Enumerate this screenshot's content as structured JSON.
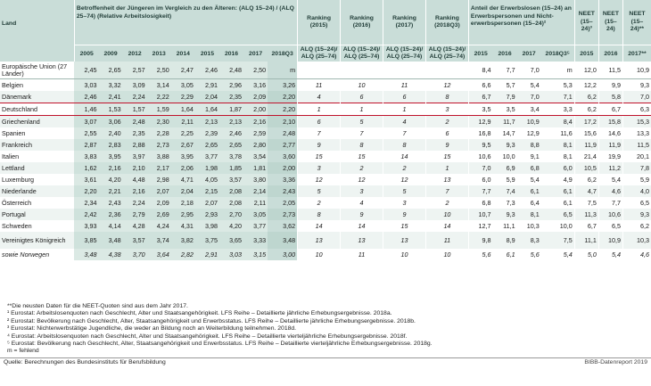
{
  "header": {
    "land": "Land",
    "group_rel": "Betroffenheit der Jüngeren im Vergleich zu den Älteren: (ALQ 15–24) / (ALQ 25–74) (Relative Arbeitslosigkeit)",
    "rank_2015": "Ranking (2015)",
    "rank_2016": "Ranking (2016)",
    "rank_2017": "Ranking (2017)",
    "rank_2018": "Ranking (2018Q3)",
    "group_share": "Anteil der Erwerbslosen (15–24) an Erwerbspersonen und Nicht-erwerbspersonen (15–24)²",
    "neet1": "NEET (15–24)³",
    "neet2": "NEET (15–24)",
    "neet3": "NEET (15–24)**",
    "years_rel": [
      "2005",
      "2009",
      "2012",
      "2013",
      "2014",
      "2015",
      "2016",
      "2017",
      "2018Q3"
    ],
    "rank_sub": "ALQ (15–24)/ ALQ (25–74)",
    "years_share": [
      "2015",
      "2016",
      "2017",
      "2018Q3⁵"
    ],
    "years_neet": [
      "2015",
      "2016",
      "2017**"
    ]
  },
  "rows": [
    {
      "land": "Europäische Union (27 Länder)",
      "rel": [
        "2,45",
        "2,65",
        "2,57",
        "2,50",
        "2,47",
        "2,46",
        "2,48",
        "2,50",
        "m"
      ],
      "rank": [
        "",
        "",
        "",
        ""
      ],
      "share": [
        "8,4",
        "7,7",
        "7,0",
        "m"
      ],
      "neet": [
        "12,0",
        "11,5",
        "10,9"
      ],
      "cls": "eu tall"
    },
    {
      "land": "Belgien",
      "rel": [
        "3,03",
        "3,32",
        "3,09",
        "3,14",
        "3,05",
        "2,91",
        "2,96",
        "3,16",
        "3,26"
      ],
      "rank": [
        "11",
        "10",
        "11",
        "12"
      ],
      "share": [
        "6,6",
        "5,7",
        "5,4",
        "5,3"
      ],
      "neet": [
        "12,2",
        "9,9",
        "9,3"
      ],
      "cls": ""
    },
    {
      "land": "Dänemark",
      "rel": [
        "2,46",
        "2,41",
        "2,24",
        "2,22",
        "2,29",
        "2,04",
        "2,35",
        "2,09",
        "2,20"
      ],
      "rank": [
        "4",
        "6",
        "6",
        "8"
      ],
      "share": [
        "6,7",
        "7,9",
        "7,0",
        "7,1"
      ],
      "neet": [
        "6,2",
        "5,8",
        "7,0"
      ],
      "cls": "alt"
    },
    {
      "land": "Deutschland",
      "rel": [
        "1,46",
        "1,53",
        "1,57",
        "1,59",
        "1,64",
        "1,64",
        "1,87",
        "2,00",
        "2,20"
      ],
      "rank": [
        "1",
        "1",
        "1",
        "3"
      ],
      "share": [
        "3,5",
        "3,5",
        "3,4",
        "3,3"
      ],
      "neet": [
        "6,2",
        "6,7",
        "6,3"
      ],
      "cls": "de"
    },
    {
      "land": "Griechenland",
      "rel": [
        "3,07",
        "3,06",
        "2,48",
        "2,30",
        "2,11",
        "2,13",
        "2,13",
        "2,16",
        "2,10"
      ],
      "rank": [
        "6",
        "5",
        "4",
        "2"
      ],
      "share": [
        "12,9",
        "11,7",
        "10,9",
        "8,4"
      ],
      "neet": [
        "17,2",
        "15,8",
        "15,3"
      ],
      "cls": "alt"
    },
    {
      "land": "Spanien",
      "rel": [
        "2,55",
        "2,40",
        "2,35",
        "2,28",
        "2,25",
        "2,39",
        "2,46",
        "2,59",
        "2,48"
      ],
      "rank": [
        "7",
        "7",
        "7",
        "6"
      ],
      "share": [
        "16,8",
        "14,7",
        "12,9",
        "11,6"
      ],
      "neet": [
        "15,6",
        "14,6",
        "13,3"
      ],
      "cls": ""
    },
    {
      "land": "Frankreich",
      "rel": [
        "2,87",
        "2,83",
        "2,88",
        "2,73",
        "2,67",
        "2,65",
        "2,65",
        "2,80",
        "2,77"
      ],
      "rank": [
        "9",
        "8",
        "8",
        "9"
      ],
      "share": [
        "9,5",
        "9,3",
        "8,8",
        "8,1"
      ],
      "neet": [
        "11,9",
        "11,9",
        "11,5"
      ],
      "cls": "alt"
    },
    {
      "land": "Italien",
      "rel": [
        "3,83",
        "3,95",
        "3,97",
        "3,88",
        "3,95",
        "3,77",
        "3,78",
        "3,54",
        "3,60"
      ],
      "rank": [
        "15",
        "15",
        "14",
        "15"
      ],
      "share": [
        "10,6",
        "10,0",
        "9,1",
        "8,1"
      ],
      "neet": [
        "21,4",
        "19,9",
        "20,1"
      ],
      "cls": ""
    },
    {
      "land": "Lettland",
      "rel": [
        "1,62",
        "2,16",
        "2,10",
        "2,17",
        "2,06",
        "1,98",
        "1,85",
        "1,81",
        "2,00"
      ],
      "rank": [
        "3",
        "2",
        "2",
        "1"
      ],
      "share": [
        "7,0",
        "6,9",
        "6,8",
        "6,0"
      ],
      "neet": [
        "10,5",
        "11,2",
        "7,8"
      ],
      "cls": "alt"
    },
    {
      "land": "Luxemburg",
      "rel": [
        "3,61",
        "4,20",
        "4,48",
        "2,98",
        "4,71",
        "4,05",
        "3,57",
        "3,80",
        "3,36"
      ],
      "rank": [
        "12",
        "12",
        "12",
        "13"
      ],
      "share": [
        "6,0",
        "5,9",
        "5,4",
        "4,9"
      ],
      "neet": [
        "6,2",
        "5,4",
        "5,9"
      ],
      "cls": ""
    },
    {
      "land": "Niederlande",
      "rel": [
        "2,20",
        "2,21",
        "2,16",
        "2,07",
        "2,04",
        "2,15",
        "2,08",
        "2,14",
        "2,43"
      ],
      "rank": [
        "5",
        "3",
        "5",
        "7"
      ],
      "share": [
        "7,7",
        "7,4",
        "6,1",
        "6,1"
      ],
      "neet": [
        "4,7",
        "4,6",
        "4,0"
      ],
      "cls": "alt"
    },
    {
      "land": "Österreich",
      "rel": [
        "2,34",
        "2,43",
        "2,24",
        "2,09",
        "2,18",
        "2,07",
        "2,08",
        "2,11",
        "2,05"
      ],
      "rank": [
        "2",
        "4",
        "3",
        "2"
      ],
      "share": [
        "6,8",
        "7,3",
        "6,4",
        "6,1"
      ],
      "neet": [
        "7,5",
        "7,7",
        "6,5"
      ],
      "cls": ""
    },
    {
      "land": "Portugal",
      "rel": [
        "2,42",
        "2,36",
        "2,79",
        "2,69",
        "2,95",
        "2,93",
        "2,70",
        "3,05",
        "2,73"
      ],
      "rank": [
        "8",
        "9",
        "9",
        "10"
      ],
      "share": [
        "10,7",
        "9,3",
        "8,1",
        "6,5"
      ],
      "neet": [
        "11,3",
        "10,6",
        "9,3"
      ],
      "cls": "alt"
    },
    {
      "land": "Schweden",
      "rel": [
        "3,93",
        "4,14",
        "4,28",
        "4,24",
        "4,31",
        "3,98",
        "4,20",
        "3,77",
        "3,62"
      ],
      "rank": [
        "14",
        "14",
        "15",
        "14"
      ],
      "share": [
        "12,7",
        "11,1",
        "10,3",
        "10,0"
      ],
      "neet": [
        "6,7",
        "6,5",
        "6,2"
      ],
      "cls": ""
    },
    {
      "land": "Vereinigtes Königreich",
      "rel": [
        "3,85",
        "3,48",
        "3,57",
        "3,74",
        "3,82",
        "3,75",
        "3,65",
        "3,33",
        "3,48"
      ],
      "rank": [
        "13",
        "13",
        "13",
        "11"
      ],
      "share": [
        "9,8",
        "8,9",
        "8,3",
        "7,5"
      ],
      "neet": [
        "11,1",
        "10,9",
        "10,3"
      ],
      "cls": "alt tall"
    },
    {
      "land": "sowie Norwegen",
      "rel": [
        "3,48",
        "4,38",
        "3,70",
        "3,64",
        "2,82",
        "2,91",
        "3,03",
        "3,15",
        "3,00"
      ],
      "rank": [
        "10",
        "11",
        "10",
        "10"
      ],
      "share": [
        "5,6",
        "6,1",
        "5,6",
        "5,4"
      ],
      "neet": [
        "5,0",
        "5,4",
        "4,6"
      ],
      "cls": "nor"
    }
  ],
  "notes": [
    "**Die neusten Daten für die NEET-Quoten sind aus dem Jahr 2017.",
    "¹ Eurostat: Arbeitslosenquoten nach Geschlecht, Alter und Staatsangehörigkeit. LFS Reihe – Detaillierte jährliche Erhebungsergebnisse. 2018a.",
    "² Eurostat: Bevölkerung nach Geschlecht, Alter, Staatsangehörigkeit und Erwerbsstatus. LFS Reihe – Detaillierte jährliche Erhebungsergebnisse. 2018b.",
    "³ Eurostat: Nichterwerbstätige Jugendliche, die weder an Bildung noch an Weiterbildung teilnehmen. 2018d.",
    "⁴ Eurostat: Arbeitslosenquoten nach Geschlecht, Alter und Staatsangehörigkeit. LFS Reihe – Detaillierte vierteljährliche Erhebungsergebnisse. 2018f.",
    "⁵ Eurostat: Bevölkerung nach Geschlecht, Alter, Staatsangehörigkeit und Erwerbsstatus. LFS Reihe – Detaillierte vierteljährliche Erhebungsergebnisse. 2018g.",
    "m = fehlend"
  ],
  "source": "Quelle: Berechnungen des Bundesinstituts für Berufsbildung",
  "brand": "BIBB-Datenreport 2019"
}
